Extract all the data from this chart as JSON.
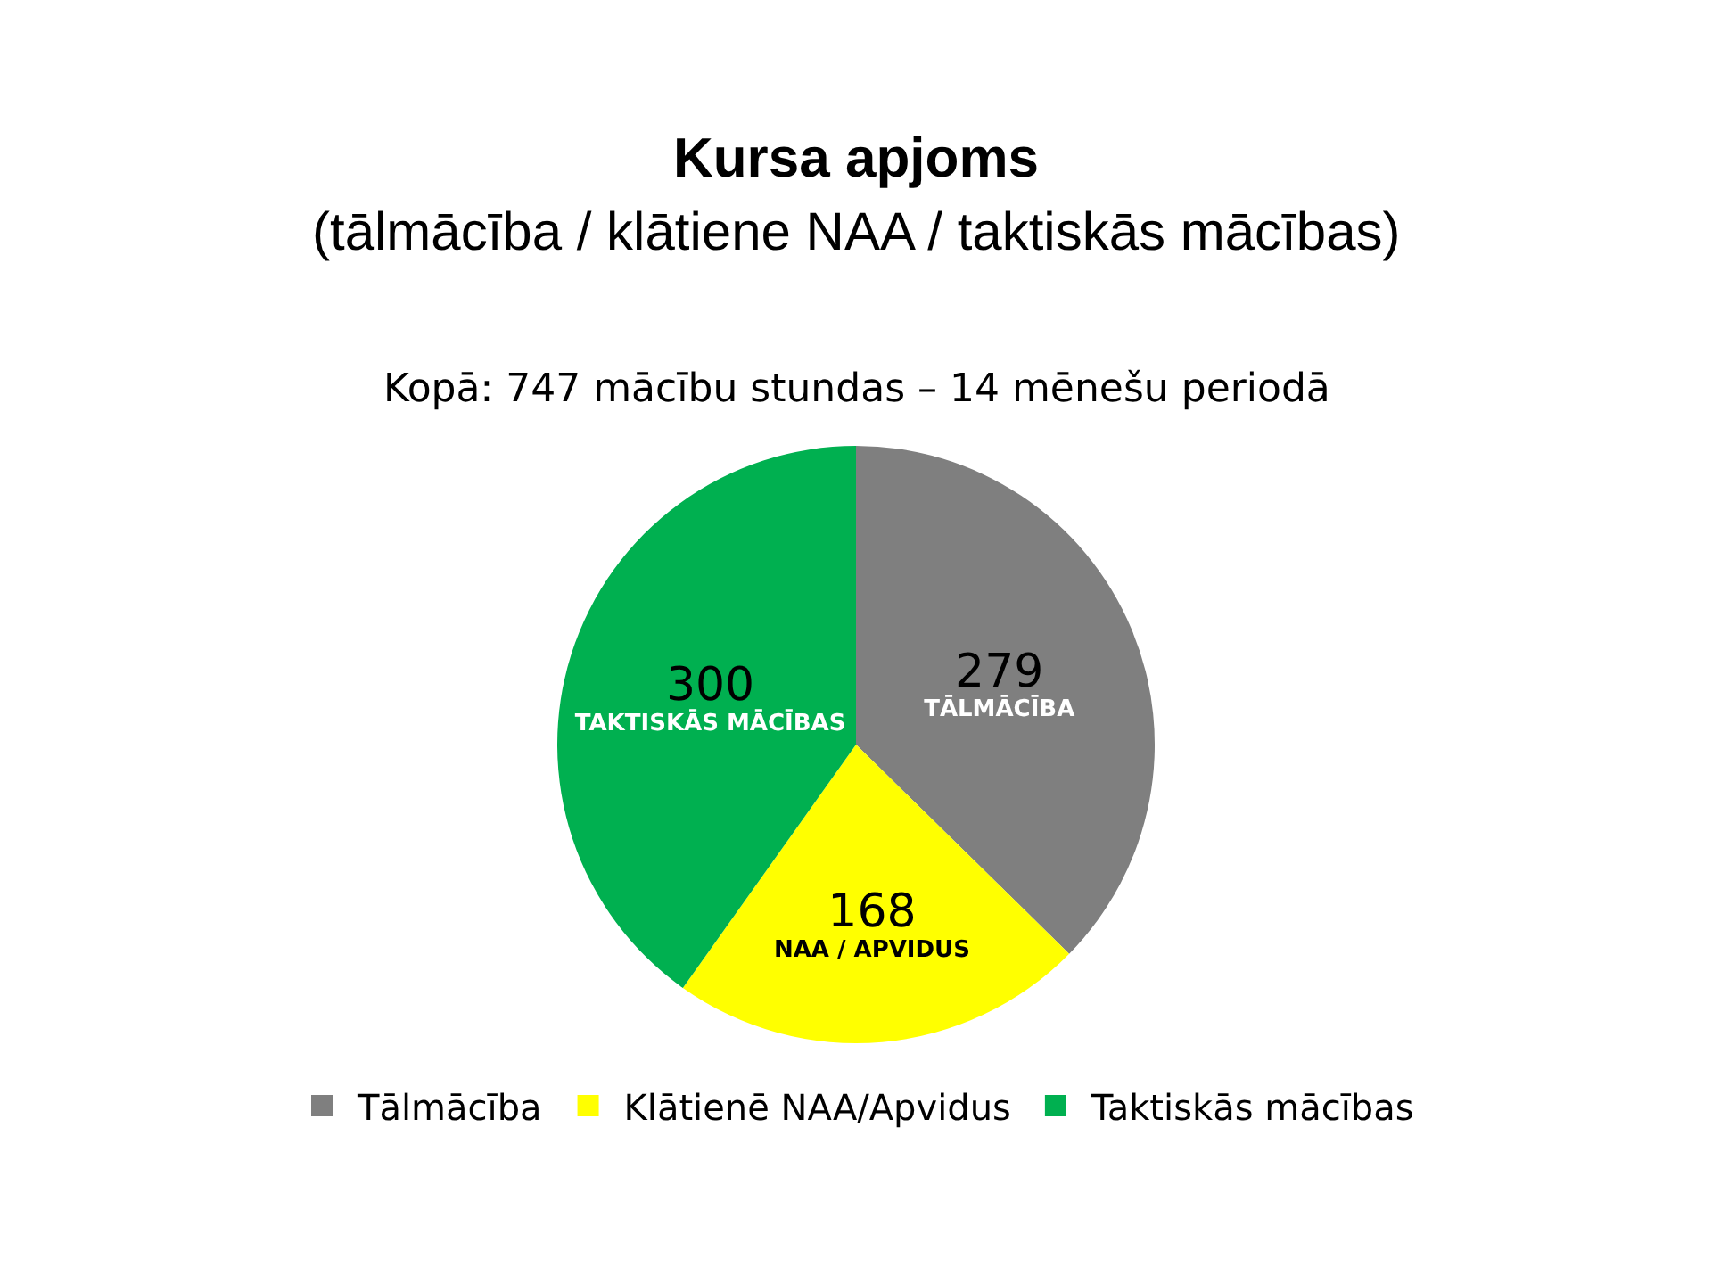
{
  "chart_data": {
    "type": "pie",
    "title": "Kursa apjoms",
    "subtitle": "(tālmācība / klātiene NAA / taktiskās mācības)",
    "annotations": [
      "Kopā: 747 mācību stundas – 14 mēnešu periodā"
    ],
    "categories": [
      "Tālmācība",
      "Klātienē NAA/Apvidus",
      "Taktiskās mācības"
    ],
    "values": [
      279,
      168,
      300
    ],
    "colors": [
      "#7f7f7f",
      "#ffff00",
      "#00b050"
    ],
    "value_labels": [
      "279\nTĀLMĀCĪBA",
      "168\nNAA / APVIDUS",
      "300\nTAKTISKĀS MĀCĪBAS"
    ],
    "legend": "bottom"
  }
}
